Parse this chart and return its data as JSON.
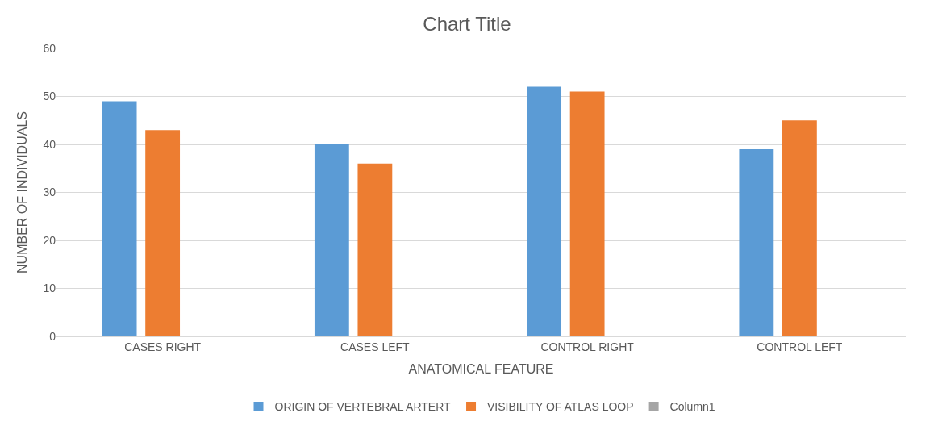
{
  "chart_data": {
    "type": "bar",
    "title": "Chart Title",
    "xlabel": "ANATOMICAL FEATURE",
    "ylabel": "NUMBER OF INDIVIDUALS",
    "categories": [
      "CASES RIGHT",
      "CASES LEFT",
      "CONTROL RIGHT",
      "CONTROL LEFT"
    ],
    "series": [
      {
        "name": "ORIGIN OF VERTEBRAL ARTERT",
        "color": "#5b9bd5",
        "values": [
          49,
          40,
          52,
          39
        ]
      },
      {
        "name": "VISIBILITY OF ATLAS LOOP",
        "color": "#ed7d31",
        "values": [
          43,
          36,
          51,
          45
        ]
      },
      {
        "name": "Column1",
        "color": "#a5a5a5",
        "values": [
          null,
          null,
          null,
          null
        ]
      }
    ],
    "ylim": [
      0,
      60
    ],
    "yticks": [
      0,
      10,
      20,
      30,
      40,
      50,
      60
    ],
    "grid": "y",
    "legend": "bottom"
  }
}
